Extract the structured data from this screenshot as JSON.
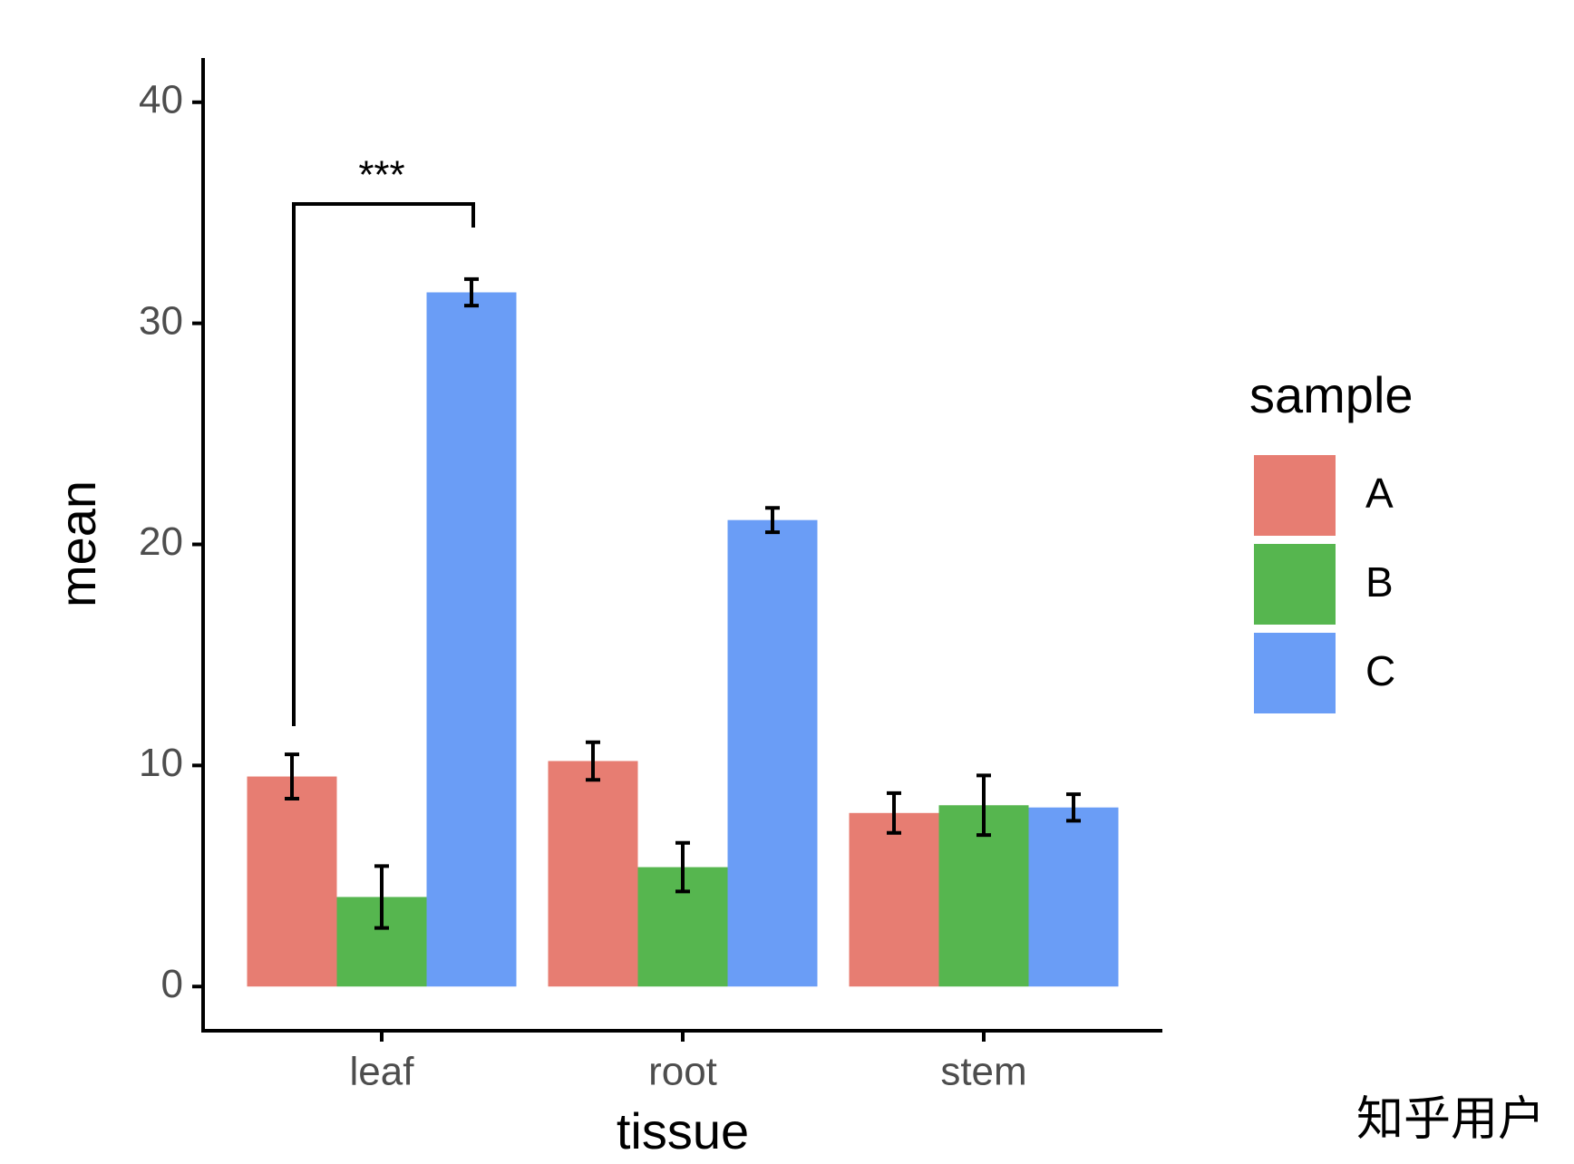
{
  "chart_data": {
    "type": "bar",
    "x_label": "tissue",
    "y_label": "mean",
    "categories": [
      "leaf",
      "root",
      "stem"
    ],
    "series": [
      {
        "name": "A",
        "color": "#e77d72",
        "values": [
          9.5,
          10.2,
          7.85
        ],
        "errors": [
          1.0,
          0.85,
          0.9
        ]
      },
      {
        "name": "B",
        "color": "#56b64f",
        "values": [
          4.05,
          5.4,
          8.2
        ],
        "errors": [
          1.4,
          1.1,
          1.35
        ]
      },
      {
        "name": "C",
        "color": "#6a9df6",
        "values": [
          31.4,
          21.1,
          8.1
        ],
        "errors": [
          0.6,
          0.55,
          0.6
        ]
      }
    ],
    "ylim": [
      -2,
      42
    ],
    "yticks": [
      0,
      10,
      20,
      30,
      40
    ],
    "legend_title": "sample",
    "legend": "right",
    "annotation": "***",
    "watermark": "知乎用户"
  }
}
